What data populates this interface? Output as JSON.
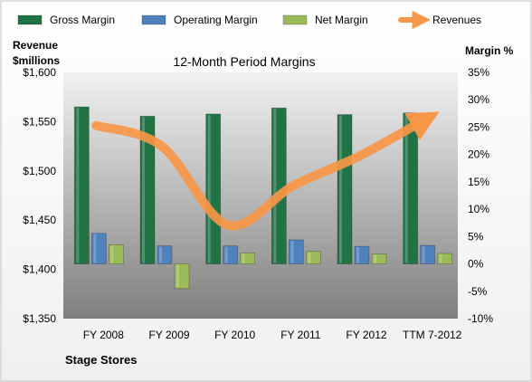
{
  "chart_data": {
    "type": "bar",
    "title": "12-Month Period Margins",
    "company": "Stage Stores",
    "left_axis": {
      "label_line1": "Revenue",
      "label_line2": "$millions",
      "min": 1350,
      "max": 1600,
      "ticks": [
        1350,
        1400,
        1450,
        1500,
        1550,
        1600
      ],
      "tick_labels": [
        "$1,350",
        "$1,400",
        "$1,450",
        "$1,500",
        "$1,550",
        "$1,600"
      ]
    },
    "right_axis": {
      "label": "Margin %",
      "min": -10,
      "max": 35,
      "ticks": [
        -10,
        -5,
        0,
        5,
        10,
        15,
        20,
        25,
        30,
        35
      ],
      "tick_labels": [
        "-10%",
        "-5%",
        "0%",
        "5%",
        "10%",
        "15%",
        "20%",
        "25%",
        "30%",
        "35%"
      ]
    },
    "categories": [
      "FY 2008",
      "FY 2009",
      "FY 2010",
      "FY 2011",
      "FY 2012",
      "TTM 7-2012"
    ],
    "series": [
      {
        "name": "Gross Margin",
        "kind": "bar",
        "axis": "right",
        "color": "#217346",
        "values": [
          28.7,
          27.0,
          27.4,
          28.5,
          27.3,
          27.6
        ]
      },
      {
        "name": "Operating Margin",
        "kind": "bar",
        "axis": "right",
        "color": "#4f81bd",
        "values": [
          5.6,
          3.3,
          3.3,
          4.4,
          3.2,
          3.4
        ]
      },
      {
        "name": "Net Margin",
        "kind": "bar",
        "axis": "right",
        "color": "#9bbb59",
        "values": [
          3.5,
          -4.5,
          2.0,
          2.3,
          1.8,
          1.9
        ]
      },
      {
        "name": "Revenues",
        "kind": "line",
        "axis": "left",
        "color": "#f79646",
        "values": [
          1546,
          1525,
          1445,
          1485,
          1515,
          1552
        ]
      }
    ],
    "legend": "top",
    "grid": false,
    "colors": {
      "plot_top": "#f2f2f2",
      "plot_bottom": "#7f7f7f",
      "frame": "#bfbfbf"
    }
  }
}
